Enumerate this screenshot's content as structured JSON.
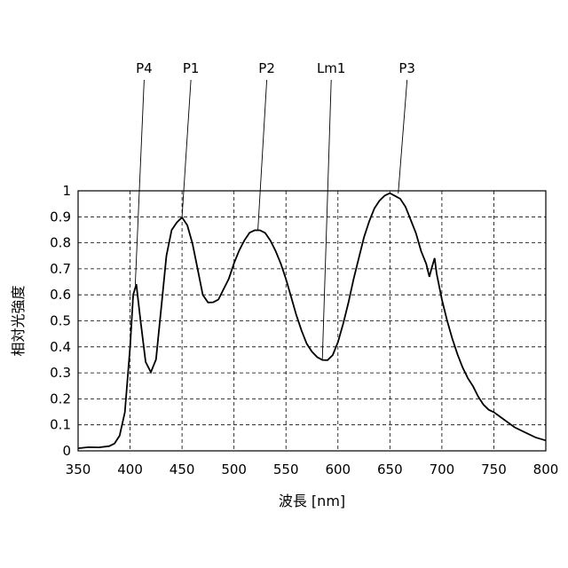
{
  "chart_data": {
    "type": "line",
    "xlabel": "波長 [nm]",
    "ylabel": "相対光強度",
    "xlim": [
      350,
      800
    ],
    "ylim": [
      0,
      1
    ],
    "x_ticks": [
      350,
      400,
      450,
      500,
      550,
      600,
      650,
      700,
      750,
      800
    ],
    "y_ticks": [
      "0",
      "0.1",
      "0.2",
      "0.3",
      "0.4",
      "0.5",
      "0.6",
      "0.7",
      "0.8",
      "0.9",
      "1"
    ],
    "grid": true,
    "series": [
      {
        "x": [
          350,
          360,
          370,
          380,
          385,
          390,
          395,
          400,
          403,
          406,
          410,
          415,
          420,
          425,
          430,
          435,
          440,
          445,
          450,
          455,
          460,
          465,
          470,
          475,
          480,
          485,
          490,
          495,
          500,
          505,
          510,
          515,
          520,
          525,
          530,
          535,
          540,
          545,
          550,
          555,
          560,
          565,
          570,
          575,
          580,
          585,
          590,
          595,
          600,
          605,
          610,
          615,
          620,
          625,
          630,
          635,
          640,
          645,
          650,
          655,
          660,
          665,
          670,
          675,
          680,
          685,
          688,
          690,
          693,
          695,
          700,
          705,
          710,
          715,
          720,
          725,
          730,
          735,
          740,
          745,
          750,
          760,
          770,
          780,
          790,
          800
        ],
        "y": [
          0.01,
          0.015,
          0.015,
          0.02,
          0.03,
          0.06,
          0.15,
          0.4,
          0.6,
          0.64,
          0.5,
          0.34,
          0.3,
          0.35,
          0.55,
          0.75,
          0.85,
          0.88,
          0.9,
          0.87,
          0.8,
          0.7,
          0.6,
          0.57,
          0.57,
          0.58,
          0.62,
          0.66,
          0.72,
          0.77,
          0.81,
          0.84,
          0.85,
          0.85,
          0.84,
          0.81,
          0.77,
          0.72,
          0.66,
          0.59,
          0.52,
          0.46,
          0.41,
          0.38,
          0.36,
          0.35,
          0.35,
          0.37,
          0.42,
          0.49,
          0.57,
          0.66,
          0.74,
          0.82,
          0.88,
          0.93,
          0.96,
          0.98,
          0.99,
          0.98,
          0.97,
          0.94,
          0.89,
          0.84,
          0.77,
          0.72,
          0.67,
          0.7,
          0.74,
          0.68,
          0.58,
          0.5,
          0.43,
          0.37,
          0.32,
          0.28,
          0.25,
          0.21,
          0.18,
          0.16,
          0.15,
          0.12,
          0.09,
          0.07,
          0.05,
          0.04
        ]
      }
    ],
    "annotations": [
      {
        "label": "P4",
        "x": 405,
        "y": 0.64
      },
      {
        "label": "P1",
        "x": 450,
        "y": 0.9
      },
      {
        "label": "P2",
        "x": 523,
        "y": 0.85
      },
      {
        "label": "Lm1",
        "x": 585,
        "y": 0.35
      },
      {
        "label": "P3",
        "x": 658,
        "y": 0.99
      }
    ]
  }
}
